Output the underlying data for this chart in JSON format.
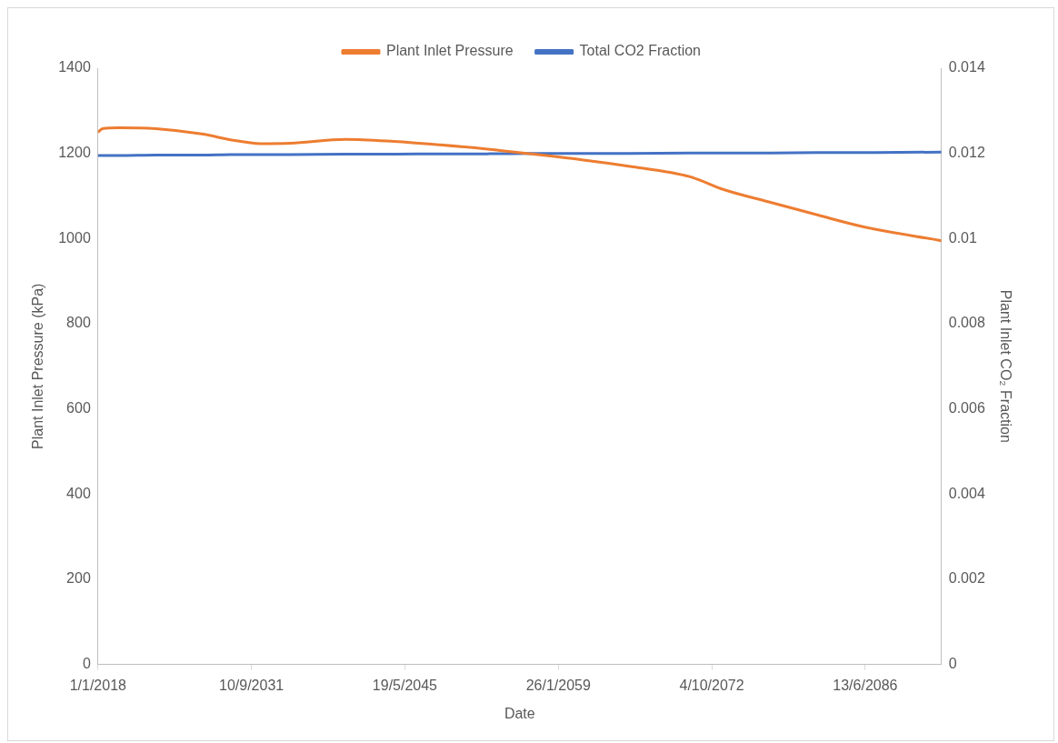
{
  "chart_data": {
    "type": "line",
    "xlabel": "Date",
    "ylabel": "Plant Inlet Pressure (kPa)",
    "y2label": "Plant Inlet CO₂ Fraction",
    "x": [
      "2018-01-01",
      "2018-06-01",
      "2019-11-01",
      "2023-03-01",
      "2027-06-01",
      "2029-11-01",
      "2032-07-01",
      "2035-03-01",
      "2040-02-01",
      "2044-06-01",
      "2048-07-01",
      "2052-10-01",
      "2056-12-01",
      "2061-03-01",
      "2065-05-01",
      "2070-11-01",
      "2073-11-01",
      "2078-01-01",
      "2082-04-01",
      "2086-06-01",
      "2093-04-01"
    ],
    "series": [
      {
        "name": "Plant Inlet Pressure",
        "color": "#ed7d31",
        "values": [
          1250,
          1258,
          1260,
          1258,
          1245,
          1232,
          1223,
          1224,
          1233,
          1228,
          1220,
          1210,
          1198,
          1185,
          1170,
          1145,
          1115,
          1085,
          1055,
          1027,
          995
        ]
      },
      {
        "name": "Total CO2 Fraction",
        "color": "#4472c4",
        "axis": "y2",
        "values": [
          0.01195,
          0.01195,
          0.01195,
          0.01196,
          0.01196,
          0.01197,
          0.01197,
          0.01197,
          0.01198,
          0.01198,
          0.01199,
          0.01199,
          0.012,
          0.012,
          0.012,
          0.01201,
          0.01201,
          0.01201,
          0.01202,
          0.01202,
          0.01203
        ]
      }
    ],
    "xlim": [
      "2018-01-01",
      "2093-04-01"
    ],
    "xticks": [
      {
        "value": "2018-01-01",
        "label": "1/1/2018"
      },
      {
        "value": "2031-09-10",
        "label": "10/9/2031"
      },
      {
        "value": "2045-05-19",
        "label": "19/5/2045"
      },
      {
        "value": "2059-01-26",
        "label": "26/1/2059"
      },
      {
        "value": "2072-10-04",
        "label": "4/10/2072"
      },
      {
        "value": "2086-06-13",
        "label": "13/6/2086"
      }
    ],
    "ylim": [
      0,
      1400
    ],
    "yticks": [
      0,
      200,
      400,
      600,
      800,
      1000,
      1200,
      1400
    ],
    "y2lim": [
      0,
      0.014
    ],
    "y2ticks": [
      0,
      0.002,
      0.004,
      0.006,
      0.008,
      0.01,
      0.012,
      0.014
    ],
    "grid": false,
    "legend": "top",
    "marker": "none",
    "line_style": "solid"
  }
}
